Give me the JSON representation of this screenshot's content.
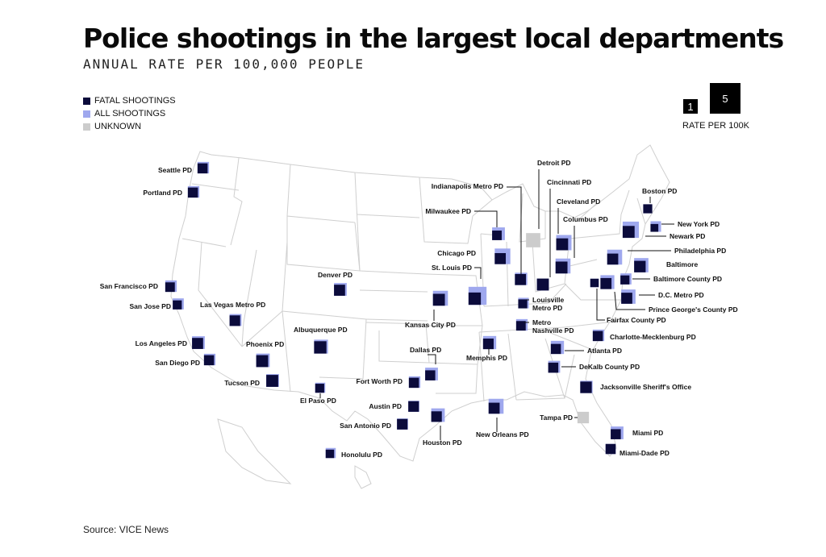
{
  "title": "Police shootings in the largest local departments",
  "subtitle": "ANNUAL RATE PER 100,000 PEOPLE",
  "legend": [
    {
      "label": "FATAL SHOOTINGS",
      "color": "#0b0b3b"
    },
    {
      "label": "ALL SHOOTINGS",
      "color": "#9fa8ee"
    },
    {
      "label": "UNKNOWN",
      "color": "#cccccc"
    }
  ],
  "scale": {
    "small": "1",
    "large": "5",
    "label": "RATE PER 100K"
  },
  "source": "Source: VICE News",
  "colors": {
    "fatal": "#0b0b3b",
    "all": "#9fa8ee",
    "unknown": "#cccccc",
    "state_border": "#cfcfcf"
  },
  "departments": [
    {
      "name": "Seattle PD",
      "all": 1.3,
      "fatal": 1.0
    },
    {
      "name": "Portland PD",
      "all": 1.3,
      "fatal": 1.0
    },
    {
      "name": "San Francisco PD",
      "all": 1.3,
      "fatal": 0.9
    },
    {
      "name": "San Jose PD",
      "all": 1.2,
      "fatal": 0.8
    },
    {
      "name": "Las Vegas Metro PD",
      "all": 1.4,
      "fatal": 1.1
    },
    {
      "name": "Los Angeles PD",
      "all": 1.6,
      "fatal": 1.2
    },
    {
      "name": "San Diego PD",
      "all": 1.3,
      "fatal": 1.0
    },
    {
      "name": "Phoenix PD",
      "all": 1.8,
      "fatal": 1.4
    },
    {
      "name": "Tucson PD",
      "all": 1.6,
      "fatal": 1.4
    },
    {
      "name": "Denver PD",
      "all": 1.6,
      "fatal": 1.2
    },
    {
      "name": "Albuquerque PD",
      "all": 1.9,
      "fatal": 1.5
    },
    {
      "name": "El Paso PD",
      "all": 1.0,
      "fatal": 0.8
    },
    {
      "name": "Fort Worth PD",
      "all": 1.3,
      "fatal": 1.0
    },
    {
      "name": "Dallas PD",
      "all": 1.6,
      "fatal": 1.0
    },
    {
      "name": "Austin PD",
      "all": 1.2,
      "fatal": 1.1
    },
    {
      "name": "San Antonio PD",
      "all": 1.2,
      "fatal": 1.1
    },
    {
      "name": "Houston PD",
      "all": 1.8,
      "fatal": 1.1
    },
    {
      "name": "Honolulu PD",
      "all": 1.0,
      "fatal": 0.7
    },
    {
      "name": "Kansas City PD",
      "all": 2.2,
      "fatal": 1.4
    },
    {
      "name": "St. Louis PD",
      "all": 3.2,
      "fatal": 1.5
    },
    {
      "name": "Chicago PD",
      "all": 2.4,
      "fatal": 1.2
    },
    {
      "name": "Milwaukee PD",
      "all": 1.6,
      "fatal": 0.9
    },
    {
      "name": "Indianapolis Metro PD",
      "all": 1.5,
      "fatal": 1.2
    },
    {
      "name": "Detroit PD",
      "all": 2.0,
      "fatal": null
    },
    {
      "name": "Cincinnati PD",
      "all": 1.4,
      "fatal": 1.4
    },
    {
      "name": "Cleveland PD",
      "all": 2.3,
      "fatal": 1.4
    },
    {
      "name": "Columbus PD",
      "all": 2.2,
      "fatal": 1.4
    },
    {
      "name": "Louisville Metro PD",
      "all": 1.1,
      "fatal": 0.8
    },
    {
      "name": "Metro Nashville PD",
      "all": 1.3,
      "fatal": 0.9
    },
    {
      "name": "Memphis PD",
      "all": 1.7,
      "fatal": 1.1
    },
    {
      "name": "New Orleans PD",
      "all": 2.2,
      "fatal": 1.2
    },
    {
      "name": "Atlanta PD",
      "all": 1.7,
      "fatal": 1.0
    },
    {
      "name": "DeKalb County PD",
      "all": 1.4,
      "fatal": 1.0
    },
    {
      "name": "Charlotte-Mecklenburg PD",
      "all": 1.3,
      "fatal": 1.0
    },
    {
      "name": "Jacksonville Sheriff's Office",
      "all": 1.5,
      "fatal": 1.3
    },
    {
      "name": "Tampa PD",
      "all": 1.3,
      "fatal": null
    },
    {
      "name": "Miami PD",
      "all": 1.6,
      "fatal": 1.0
    },
    {
      "name": "Miami-Dade PD",
      "all": 1.0,
      "fatal": 1.0
    },
    {
      "name": "Boston PD",
      "all": 0.8,
      "fatal": 0.8
    },
    {
      "name": "New York PD",
      "all": 1.1,
      "fatal": 0.6
    },
    {
      "name": "Newark PD",
      "all": 2.6,
      "fatal": 1.4
    },
    {
      "name": "Philadelphia PD",
      "all": 2.2,
      "fatal": 1.2
    },
    {
      "name": "Baltimore",
      "all": 2.0,
      "fatal": 1.3
    },
    {
      "name": "Baltimore County PD",
      "all": 1.2,
      "fatal": 0.8
    },
    {
      "name": "D.C. Metro PD",
      "all": 2.0,
      "fatal": 1.2
    },
    {
      "name": "Prince George's County PD",
      "all": 1.9,
      "fatal": 1.2
    },
    {
      "name": "Fairfax County PD",
      "all": 0.7,
      "fatal": 0.7
    }
  ]
}
